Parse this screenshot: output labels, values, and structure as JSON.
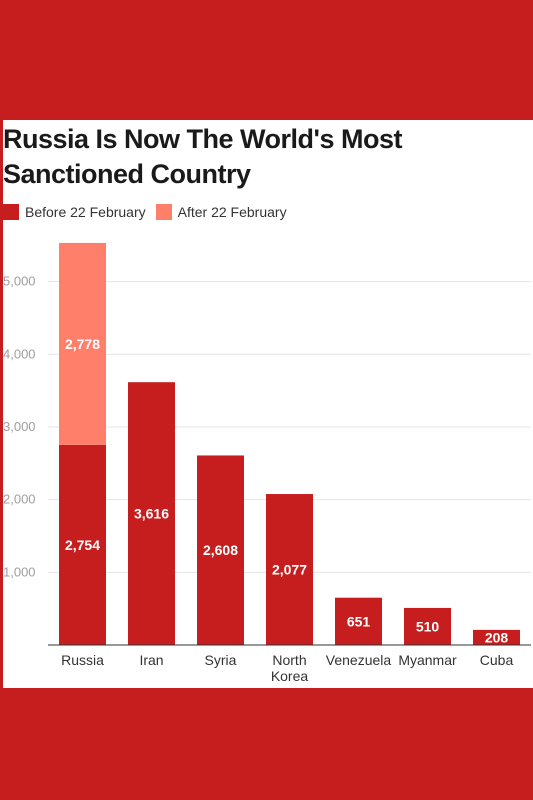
{
  "colors": {
    "background": "#c61d1f",
    "before": "#c61d1f",
    "after": "#ff7f6a",
    "grid": "#e6e6e6"
  },
  "chart_data": {
    "type": "bar",
    "stacked": true,
    "title": "Russia Is Now The World's Most Sanctioned Country",
    "title_lines": [
      "Russia Is Now The World's Most",
      "Sanctioned Country"
    ],
    "categories": [
      "Russia",
      "Iran",
      "Syria",
      "North Korea",
      "Venezuela",
      "Myanmar",
      "Cuba"
    ],
    "category_lines": [
      [
        "Russia"
      ],
      [
        "Iran"
      ],
      [
        "Syria"
      ],
      [
        "North",
        "Korea"
      ],
      [
        "Venezuela"
      ],
      [
        "Myanmar"
      ],
      [
        "Cuba"
      ]
    ],
    "series": [
      {
        "name": "Before 22 February",
        "color": "#c61d1f",
        "values": [
          2754,
          3616,
          2608,
          2077,
          651,
          510,
          208
        ]
      },
      {
        "name": "After 22 February",
        "color": "#ff7f6a",
        "values": [
          2778,
          0,
          0,
          0,
          0,
          0,
          0
        ]
      }
    ],
    "data_labels": [
      [
        "2,754",
        "3,616",
        "2,608",
        "2,077",
        "651",
        "510",
        "208"
      ],
      [
        "2,778",
        "",
        "",
        "",
        "",
        "",
        ""
      ]
    ],
    "ylim": [
      0,
      5600
    ],
    "yticks": [
      1000,
      2000,
      3000,
      4000,
      5000
    ],
    "ytick_labels": [
      "1,000",
      "2,000",
      "3,000",
      "4,000",
      "5,000"
    ],
    "xlabel": "",
    "ylabel": "",
    "grid": true,
    "legend_position": "top-left"
  }
}
